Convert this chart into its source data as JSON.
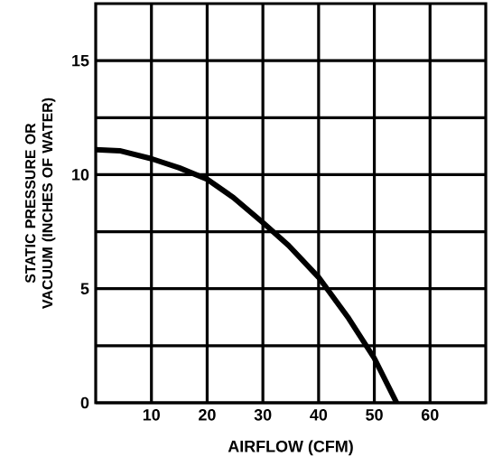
{
  "chart_data": {
    "type": "line",
    "xlabel": "AIRFLOW (CFM)",
    "ylabel": "STATIC PRESSURE OR VACUUM (INCHES OF WATER)",
    "xlim": [
      0,
      70
    ],
    "ylim": [
      0,
      17.5
    ],
    "xticks": [
      10,
      20,
      30,
      40,
      50,
      60
    ],
    "yticks": [
      0,
      {
        "value": 2.5,
        "label": null
      },
      5,
      {
        "value": 7.5,
        "label": null
      },
      10,
      {
        "value": 12.5,
        "label": null
      },
      15
    ],
    "grid": true,
    "marker": "none",
    "line_style": "solid",
    "series": [
      {
        "color": "#000000",
        "x": [
          0,
          4.3,
          10,
          15,
          20,
          24.7,
          30,
          34.6,
          40,
          45.4,
          50,
          54
        ],
        "values": [
          11.1,
          11.05,
          10.7,
          10.3,
          9.8,
          9.0,
          7.9,
          6.9,
          5.5,
          3.7,
          1.95,
          0
        ]
      }
    ]
  }
}
